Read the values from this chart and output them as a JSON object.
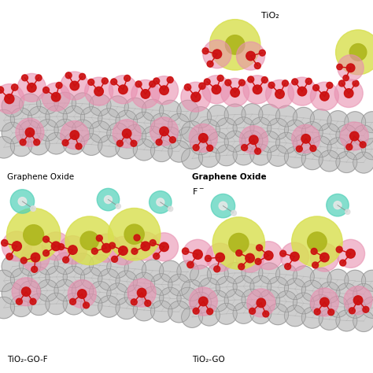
{
  "background_color": "#ffffff",
  "panel_labels": {
    "top_left": "Graphene Oxide",
    "top_right": "Graphene Oxide",
    "bottom_left": "TiO₂-GO-F",
    "bottom_right": "TiO₂-GO"
  },
  "tio2_label": "TiO₂",
  "f_label": "F⁻",
  "colors": {
    "carbon_gray": "#c0c0c0",
    "carbon_edge": "#909090",
    "carbon_alpha": 0.75,
    "oxygen_pink": "#e890b0",
    "oxygen_pink_alpha": 0.6,
    "oxygen_red": "#cc1010",
    "titanium_yellow": "#d8e050",
    "titanium_yellow_alpha": 0.82,
    "titanium_core": "#b0b820",
    "fluorine_teal": "#50d0b8",
    "fluorine_teal_alpha": 0.7,
    "white_atom": "#e8e8e8",
    "bond_red": "#cc1010"
  }
}
